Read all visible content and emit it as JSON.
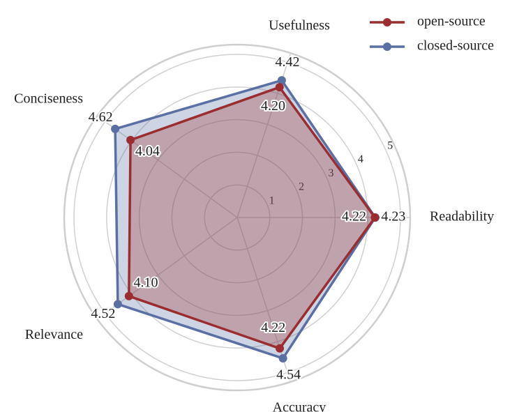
{
  "chart_data": {
    "type": "radar",
    "categories": [
      "Readability",
      "Usefulness",
      "Conciseness",
      "Relevance",
      "Accuracy"
    ],
    "rlim": [
      0,
      5.3
    ],
    "rticks": [
      1,
      2,
      3,
      4,
      5
    ],
    "grid": true,
    "legend": "upper right",
    "series": [
      {
        "name": "open-source",
        "color": "#9b2d30",
        "values": [
          4.22,
          4.2,
          4.04,
          4.1,
          4.22
        ],
        "value_labels": [
          "4.22",
          "4.20",
          "4.04",
          "4.10",
          "4.22"
        ]
      },
      {
        "name": "closed-source",
        "color": "#5a6fa3",
        "values": [
          4.23,
          4.42,
          4.62,
          4.52,
          4.54
        ],
        "value_labels": [
          "4.23",
          "4.42",
          "4.62",
          "4.52",
          "4.54"
        ]
      }
    ]
  }
}
